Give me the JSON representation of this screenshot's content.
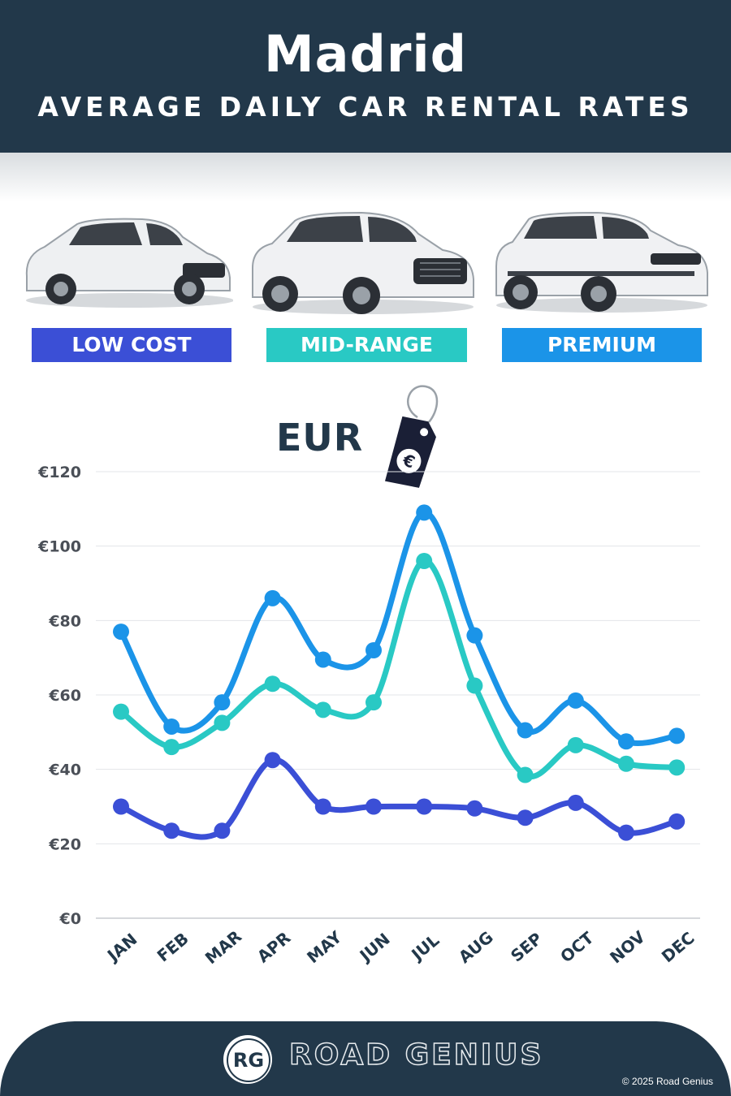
{
  "header": {
    "city": "Madrid",
    "subtitle": "AVERAGE DAILY CAR RENTAL RATES"
  },
  "categories": [
    {
      "label": "LOW COST",
      "color": "#3b4fd6"
    },
    {
      "label": "MID-RANGE",
      "color": "#29c9c4"
    },
    {
      "label": "PREMIUM",
      "color": "#1b94e8"
    }
  ],
  "currency_label": "EUR",
  "tag_icon": "euro-price-tag-icon",
  "chart_data": {
    "type": "line",
    "categories": [
      "JAN",
      "FEB",
      "MAR",
      "APR",
      "MAY",
      "JUN",
      "JUL",
      "AUG",
      "SEP",
      "OCT",
      "NOV",
      "DEC"
    ],
    "ylim": [
      0,
      120
    ],
    "yticks": [
      0,
      20,
      40,
      60,
      80,
      100,
      120
    ],
    "ytick_labels": [
      "€0",
      "€20",
      "€40",
      "€60",
      "€80",
      "€100",
      "€120"
    ],
    "grid": true,
    "series": [
      {
        "key": "low_cost",
        "color": "#3b4fd6",
        "values": [
          30,
          23.5,
          23.5,
          42.5,
          30,
          30,
          30,
          29.5,
          27,
          31,
          23,
          26
        ]
      },
      {
        "key": "mid_range",
        "color": "#29c9c4",
        "values": [
          55.5,
          46,
          52.5,
          63,
          56,
          58,
          96,
          62.5,
          38.5,
          46.5,
          41.5,
          40.5
        ]
      },
      {
        "key": "premium",
        "color": "#1b94e8",
        "values": [
          77,
          51.5,
          58,
          86,
          69.5,
          72,
          109,
          76,
          50.5,
          58.5,
          47.5,
          49
        ]
      }
    ]
  },
  "footer": {
    "brand": "ROAD GENIUS",
    "logo": "RG",
    "copyright": "© 2025 Road Genius"
  }
}
